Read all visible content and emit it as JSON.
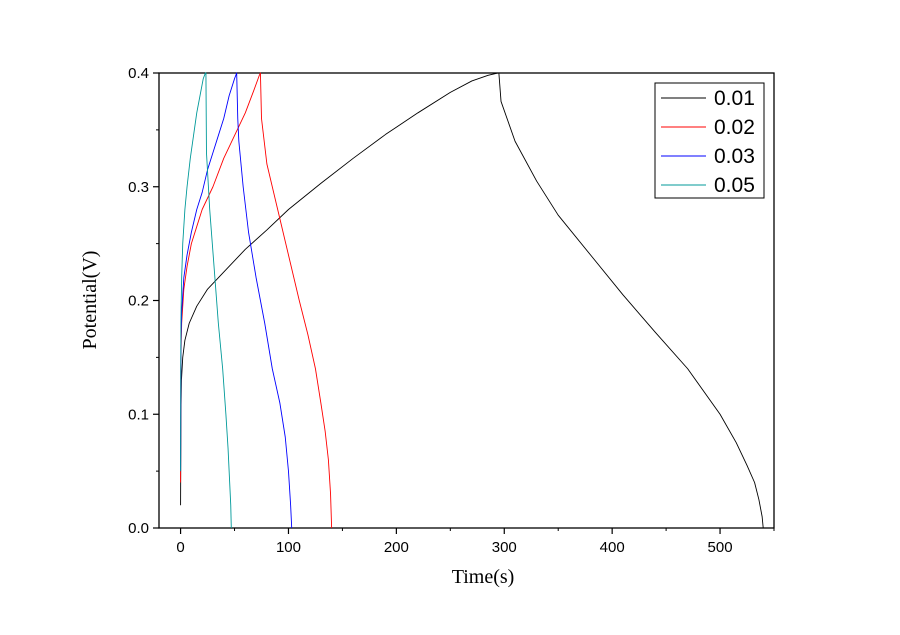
{
  "chart_data": {
    "type": "line",
    "title": "",
    "xlabel": "Time(s)",
    "ylabel": "Potential(V)",
    "xlim": [
      -20,
      550
    ],
    "ylim": [
      0,
      0.4
    ],
    "x_ticks": [
      0,
      100,
      200,
      300,
      400,
      500
    ],
    "x_tick_labels": [
      "0",
      "100",
      "200",
      "300",
      "400",
      "500"
    ],
    "y_ticks": [
      0.0,
      0.1,
      0.2,
      0.3,
      0.4
    ],
    "y_tick_labels": [
      "0.0",
      "0.1",
      "0.2",
      "0.3",
      "0.4"
    ],
    "grid": false,
    "legend_position": "top-right",
    "series": [
      {
        "name": "0.01",
        "color": "#000000",
        "x": [
          0,
          0.3,
          0.8,
          2,
          4,
          8,
          15,
          25,
          40,
          60,
          80,
          100,
          130,
          160,
          190,
          220,
          250,
          270,
          285,
          294,
          295,
          297,
          310,
          330,
          350,
          380,
          410,
          440,
          470,
          500,
          515,
          525,
          532,
          536,
          539,
          540
        ],
        "y": [
          0.02,
          0.1,
          0.13,
          0.15,
          0.165,
          0.18,
          0.195,
          0.21,
          0.225,
          0.245,
          0.262,
          0.28,
          0.303,
          0.325,
          0.346,
          0.365,
          0.383,
          0.393,
          0.398,
          0.4,
          0.4,
          0.375,
          0.34,
          0.305,
          0.275,
          0.24,
          0.205,
          0.172,
          0.14,
          0.1,
          0.075,
          0.055,
          0.04,
          0.025,
          0.01,
          0.0
        ]
      },
      {
        "name": "0.02",
        "color": "#ff0000",
        "x": [
          0,
          0.3,
          1,
          3,
          6,
          10,
          15,
          20,
          30,
          40,
          50,
          60,
          68,
          73,
          74,
          75,
          80,
          90,
          100,
          110,
          118,
          125,
          130,
          134,
          137,
          139,
          140
        ],
        "y": [
          0.04,
          0.15,
          0.18,
          0.21,
          0.23,
          0.25,
          0.265,
          0.28,
          0.3,
          0.325,
          0.345,
          0.365,
          0.385,
          0.398,
          0.4,
          0.36,
          0.32,
          0.28,
          0.24,
          0.2,
          0.17,
          0.14,
          0.11,
          0.085,
          0.06,
          0.03,
          0.0
        ]
      },
      {
        "name": "0.03",
        "color": "#0000ff",
        "x": [
          0,
          0.3,
          1,
          3,
          6,
          10,
          15,
          20,
          25,
          30,
          35,
          40,
          45,
          50,
          52,
          53,
          54,
          58,
          63,
          70,
          78,
          85,
          92,
          97,
          100,
          102,
          103
        ],
        "y": [
          0.05,
          0.16,
          0.19,
          0.22,
          0.24,
          0.26,
          0.28,
          0.295,
          0.315,
          0.33,
          0.345,
          0.36,
          0.38,
          0.395,
          0.4,
          0.36,
          0.34,
          0.3,
          0.26,
          0.22,
          0.18,
          0.14,
          0.11,
          0.08,
          0.05,
          0.02,
          0.0
        ]
      },
      {
        "name": "0.05",
        "color": "#009999",
        "x": [
          0,
          0.3,
          1,
          2,
          4,
          6,
          9,
          12,
          15,
          18,
          21,
          23,
          23.5,
          24,
          27,
          31,
          35,
          39,
          42,
          44,
          45.5,
          46.5,
          47
        ],
        "y": [
          0.05,
          0.18,
          0.22,
          0.25,
          0.28,
          0.3,
          0.325,
          0.345,
          0.365,
          0.38,
          0.395,
          0.4,
          0.4,
          0.33,
          0.28,
          0.23,
          0.18,
          0.14,
          0.1,
          0.07,
          0.04,
          0.02,
          0.0
        ]
      }
    ]
  }
}
